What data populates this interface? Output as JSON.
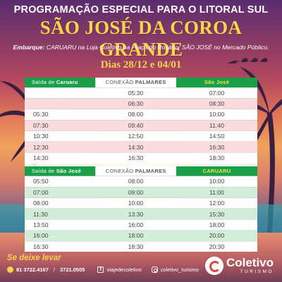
{
  "header": {
    "subtitle": "PROGRAMAÇÃO ESPECIAL PARA O LITORAL SUL",
    "title": "SÃO JOSÉ DA COROA GRANDE",
    "embark_label": "Embarque:",
    "embark_text": " CARUARU na Loja Coletivo na Praça do Rosário; SÃO JOSÉ no Mercado Público.",
    "dates": "Dias 28/12 e 04/01"
  },
  "table1": {
    "headers": {
      "col1_prefix": "Saída de ",
      "col1_bold": "Caruaru",
      "col2_prefix": "CONEXÃO ",
      "col2_bold": "PALMARES",
      "col3": "São José"
    },
    "rows": [
      [
        "",
        "05:30",
        "07:00"
      ],
      [
        "",
        "06:30",
        "08:30"
      ],
      [
        "05:30",
        "08:00",
        "10:00"
      ],
      [
        "07:30",
        "09:40",
        "11:40"
      ],
      [
        "10:30",
        "12:50",
        "14:50"
      ],
      [
        "12:30",
        "14:30",
        "16:30"
      ],
      [
        "14:30",
        "16:30",
        "18:30"
      ]
    ]
  },
  "table2": {
    "headers": {
      "col1_prefix": "Saída de ",
      "col1_bold": "São José",
      "col2_prefix": "CONEXÃO ",
      "col2_bold": "PALMARES",
      "col3": "CARUARU"
    },
    "rows": [
      [
        "05:50",
        "08:00",
        "10:00"
      ],
      [
        "07:00",
        "09:00",
        "11:00"
      ],
      [
        "08:00",
        "10:00",
        "12:00"
      ],
      [
        "11:30",
        "13:30",
        "15:30"
      ],
      [
        "13:50",
        "16:00",
        "18:00"
      ],
      [
        "16:00",
        "18:00",
        "20:00"
      ],
      [
        "16:30",
        "18:30",
        "20:30"
      ]
    ]
  },
  "footer": {
    "slogan": "Se deixe levar",
    "phone1": "81 3722.4167",
    "phone_sep": "/",
    "phone2": "3721.0505",
    "facebook": "viajedecoletivo",
    "instagram": "coletivo_turismo",
    "brand_name": "Coletivo",
    "brand_sub": "TURISMO"
  },
  "colors": {
    "accent_yellow": "#f6d54a",
    "header_green": "#1a9f49",
    "row_pink": "#fadade",
    "row_green": "#d0ecd7"
  },
  "icons": [
    "phone-icon",
    "facebook-icon",
    "instagram-icon",
    "coletivo-logo-icon"
  ]
}
